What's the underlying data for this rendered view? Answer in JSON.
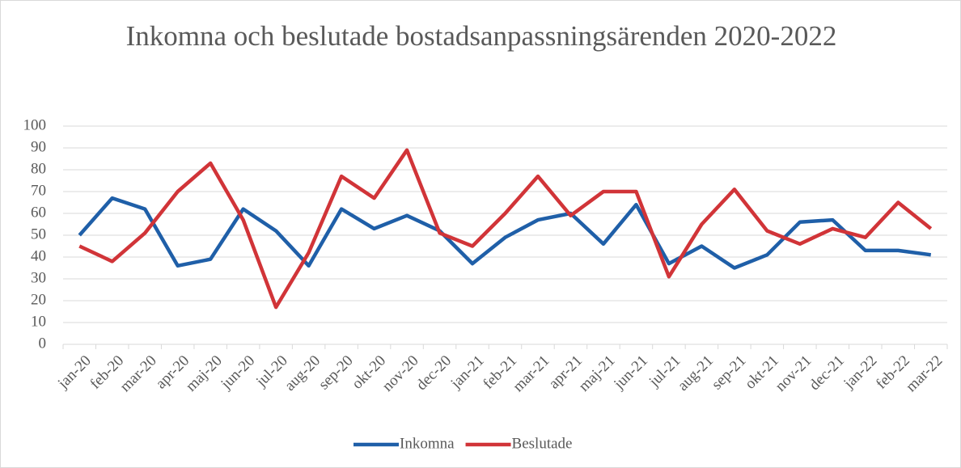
{
  "chart_data": {
    "type": "line",
    "title": "Inkomna och beslutade bostadsanpassningsärenden 2020-2022",
    "categories": [
      "jan-20",
      "feb-20",
      "mar-20",
      "apr-20",
      "maj-20",
      "jun-20",
      "jul-20",
      "aug-20",
      "sep-20",
      "okt-20",
      "nov-20",
      "dec-20",
      "jan-21",
      "feb-21",
      "mar-21",
      "apr-21",
      "maj-21",
      "jun-21",
      "jul-21",
      "aug-21",
      "sep-21",
      "okt-21",
      "nov-21",
      "dec-21",
      "jan-22",
      "feb-22",
      "mar-22"
    ],
    "series": [
      {
        "name": "Inkomna",
        "color": "#1f5fa8",
        "values": [
          50,
          67,
          62,
          36,
          39,
          62,
          52,
          36,
          62,
          53,
          59,
          52,
          37,
          49,
          57,
          60,
          46,
          64,
          37,
          45,
          35,
          41,
          56,
          57,
          43,
          43,
          41
        ]
      },
      {
        "name": "Beslutade",
        "color": "#d13438",
        "values": [
          45,
          38,
          51,
          70,
          83,
          57,
          17,
          42,
          77,
          67,
          89,
          51,
          45,
          60,
          77,
          59,
          70,
          70,
          31,
          55,
          71,
          52,
          46,
          53,
          49,
          65,
          53
        ]
      }
    ],
    "ylim": [
      0,
      100
    ],
    "yticks": [
      0,
      10,
      20,
      30,
      40,
      50,
      60,
      70,
      80,
      90,
      100
    ],
    "grid": true,
    "legend": "bottom"
  }
}
